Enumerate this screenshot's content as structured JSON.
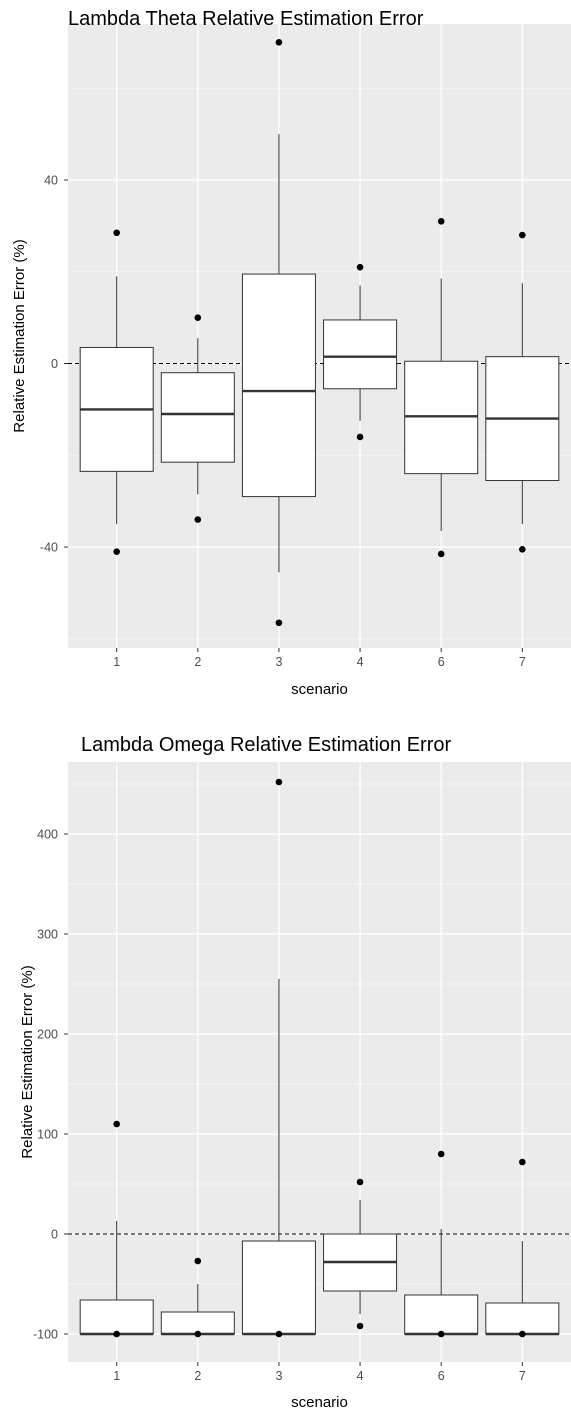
{
  "chart_data": [
    {
      "type": "boxplot",
      "title": "Lambda Theta Relative Estimation Error",
      "xlabel": "scenario",
      "ylabel": "Relative Estimation Error (%)",
      "ylim": [
        -62,
        74
      ],
      "y_ticks": [
        -40,
        0,
        40
      ],
      "y_tick_labels": [
        "-40",
        "0",
        "40"
      ],
      "reference_line": 0,
      "grid": true,
      "categories": [
        "1",
        "2",
        "3",
        "4",
        "6",
        "7"
      ],
      "boxes": [
        {
          "scenario": "1",
          "whisker_low": -35,
          "q1": -23.5,
          "median": -10,
          "q3": 3.5,
          "whisker_high": 19
        },
        {
          "scenario": "2",
          "whisker_low": -28.5,
          "q1": -21.5,
          "median": -11,
          "q3": -2,
          "whisker_high": 5.5
        },
        {
          "scenario": "3",
          "whisker_low": -45.5,
          "q1": -29,
          "median": -6,
          "q3": 19.5,
          "whisker_high": 50
        },
        {
          "scenario": "4",
          "whisker_low": -12.5,
          "q1": -5.5,
          "median": 1.5,
          "q3": 9.5,
          "whisker_high": 17
        },
        {
          "scenario": "6",
          "whisker_low": -36.5,
          "q1": -24,
          "median": -11.5,
          "q3": 0.5,
          "whisker_high": 18.5
        },
        {
          "scenario": "7",
          "whisker_low": -35,
          "q1": -25.5,
          "median": -12,
          "q3": 1.5,
          "whisker_high": 17.5
        }
      ],
      "outliers": [
        {
          "scenario": "1",
          "values": [
            28.5,
            -41
          ]
        },
        {
          "scenario": "2",
          "values": [
            10,
            -34
          ]
        },
        {
          "scenario": "3",
          "values": [
            70,
            -56.5
          ]
        },
        {
          "scenario": "4",
          "values": [
            21,
            -16
          ]
        },
        {
          "scenario": "6",
          "values": [
            31,
            -41.5
          ]
        },
        {
          "scenario": "7",
          "values": [
            28,
            -40.5
          ]
        }
      ]
    },
    {
      "type": "boxplot",
      "title": "Lambda Omega Relative Estimation Error",
      "xlabel": "scenario",
      "ylabel": "Relative Estimation Error (%)",
      "ylim": [
        -128,
        472
      ],
      "y_ticks": [
        -100,
        0,
        100,
        200,
        300,
        400
      ],
      "y_tick_labels": [
        "-100",
        "0",
        "100",
        "200",
        "300",
        "400"
      ],
      "reference_line": 0,
      "grid": true,
      "categories": [
        "1",
        "2",
        "3",
        "4",
        "6",
        "7"
      ],
      "boxes": [
        {
          "scenario": "1",
          "whisker_low": -100,
          "q1": -100,
          "median": -100,
          "q3": -66,
          "whisker_high": 13
        },
        {
          "scenario": "2",
          "whisker_low": -100,
          "q1": -100,
          "median": -100,
          "q3": -78,
          "whisker_high": -50
        },
        {
          "scenario": "3",
          "whisker_low": -100,
          "q1": -100,
          "median": -100,
          "q3": -7,
          "whisker_high": 255
        },
        {
          "scenario": "4",
          "whisker_low": -80,
          "q1": -57,
          "median": -28,
          "q3": 0,
          "whisker_high": 34
        },
        {
          "scenario": "6",
          "whisker_low": -100,
          "q1": -100,
          "median": -100,
          "q3": -61,
          "whisker_high": 5
        },
        {
          "scenario": "7",
          "whisker_low": -100,
          "q1": -100,
          "median": -100,
          "q3": -69,
          "whisker_high": -7
        }
      ],
      "outliers": [
        {
          "scenario": "1",
          "values": [
            110,
            -100
          ]
        },
        {
          "scenario": "2",
          "values": [
            -27,
            -100
          ]
        },
        {
          "scenario": "3",
          "values": [
            452,
            -100
          ]
        },
        {
          "scenario": "4",
          "values": [
            52,
            -92
          ]
        },
        {
          "scenario": "6",
          "values": [
            80,
            -100
          ]
        },
        {
          "scenario": "7",
          "values": [
            72,
            -100
          ]
        }
      ]
    }
  ],
  "colors": {
    "panel_background": "#ebebeb",
    "grid_major": "#ffffff",
    "grid_minor": "#f5f5f5",
    "box_fill": "#ffffff",
    "box_stroke": "#333333",
    "point": "#000000",
    "tick_text": "#4d4d4d"
  }
}
